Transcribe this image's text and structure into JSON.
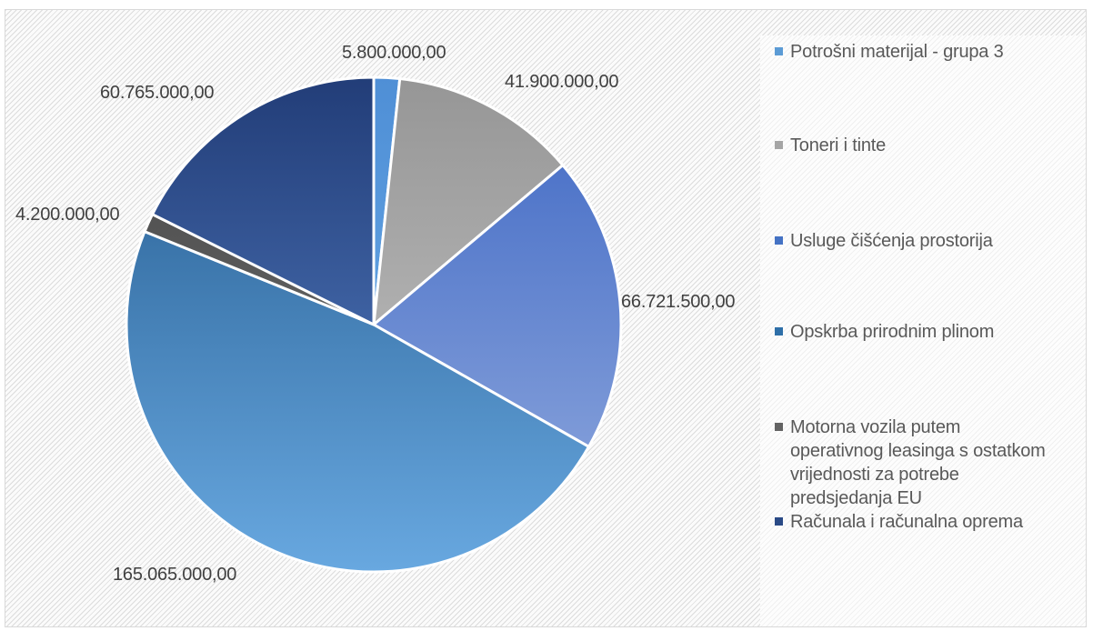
{
  "chart_data": {
    "type": "pie",
    "title": "",
    "start_angle_deg": 0,
    "direction": "clockwise",
    "slices": [
      {
        "name": "Potrošni materijal - grupa 3",
        "value": 5800000,
        "label": "5.800.000,00",
        "color_top": "#4f8fd6",
        "color_bottom": "#6fb0ea"
      },
      {
        "name": "Toneri i tinte",
        "value": 41900000,
        "label": "41.900.000,00",
        "color_top": "#969696",
        "color_bottom": "#c9c9c9"
      },
      {
        "name": "Usluge čišćenja prostorija",
        "value": 66721500,
        "label": "66.721.500,00",
        "color_top": "#3f68c4",
        "color_bottom": "#94acdf"
      },
      {
        "name": "Opskrba prirodnim plinom",
        "value": 165065000,
        "label": "165.065.000,00",
        "color_top": "#245b8f",
        "color_bottom": "#68a8e0"
      },
      {
        "name": "Motorna vozila putem operativnog leasinga s ostatkom vrijednosti za potrebe predsjedanja EU",
        "value": 4200000,
        "label": "4.200.000,00",
        "color_top": "#444444",
        "color_bottom": "#7a7a7a"
      },
      {
        "name": "Računala i računalna oprema",
        "value": 60765000,
        "label": "60.765.000,00",
        "color_top": "#223d78",
        "color_bottom": "#5a86cc"
      }
    ],
    "legend_position": "right"
  },
  "legend_colors": [
    "#5b9bd5",
    "#a5a5a5",
    "#4472c4",
    "#2e6fa8",
    "#636363",
    "#2a4a86"
  ]
}
